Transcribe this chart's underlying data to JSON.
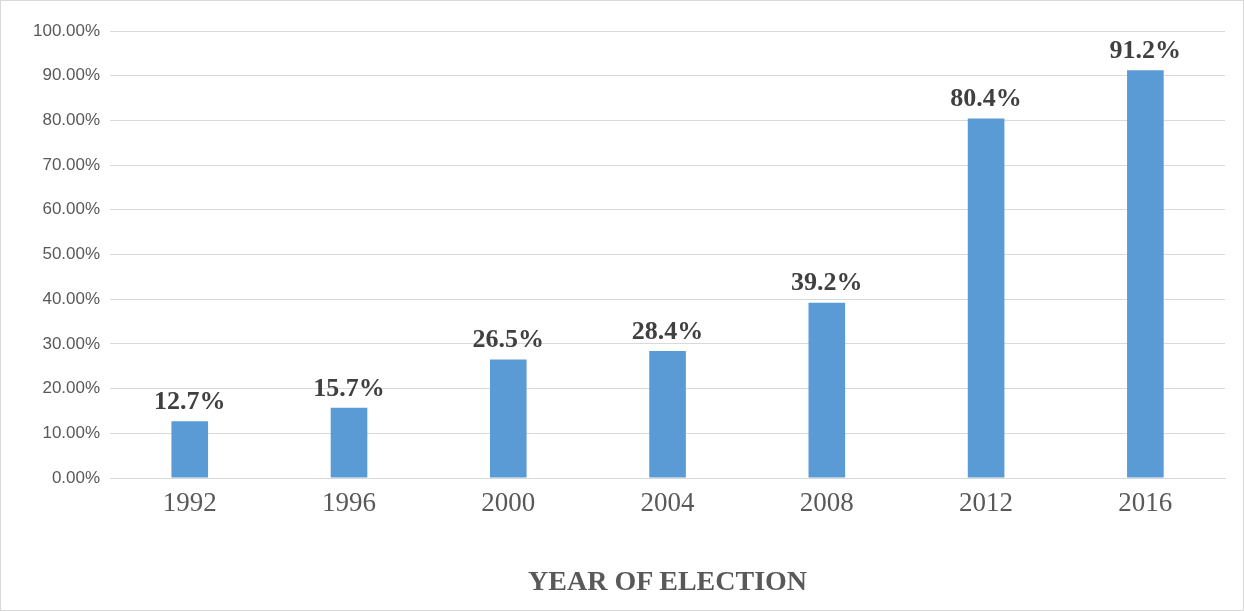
{
  "chart_data": {
    "type": "bar",
    "xlabel": "YEAR OF ELECTION",
    "categories": [
      "1992",
      "1996",
      "2000",
      "2004",
      "2008",
      "2012",
      "2016"
    ],
    "values": [
      12.7,
      15.7,
      26.5,
      28.4,
      39.2,
      80.4,
      91.2
    ],
    "value_labels": [
      "12.7%",
      "15.7%",
      "26.5%",
      "28.4%",
      "39.2%",
      "80.4%",
      "91.2%"
    ],
    "color": "#5b9bd5",
    "ylim": [
      0,
      100
    ],
    "yticks": [
      {
        "value": 0,
        "label": "0.00%"
      },
      {
        "value": 10,
        "label": "10.00%"
      },
      {
        "value": 20,
        "label": "20.00%"
      },
      {
        "value": 30,
        "label": "30.00%"
      },
      {
        "value": 40,
        "label": "40.00%"
      },
      {
        "value": 50,
        "label": "50.00%"
      },
      {
        "value": 60,
        "label": "60.00%"
      },
      {
        "value": 70,
        "label": "70.00%"
      },
      {
        "value": 80,
        "label": "80.00%"
      },
      {
        "value": 90,
        "label": "90.00%"
      },
      {
        "value": 100,
        "label": "100.00%"
      }
    ],
    "grid": "y"
  }
}
